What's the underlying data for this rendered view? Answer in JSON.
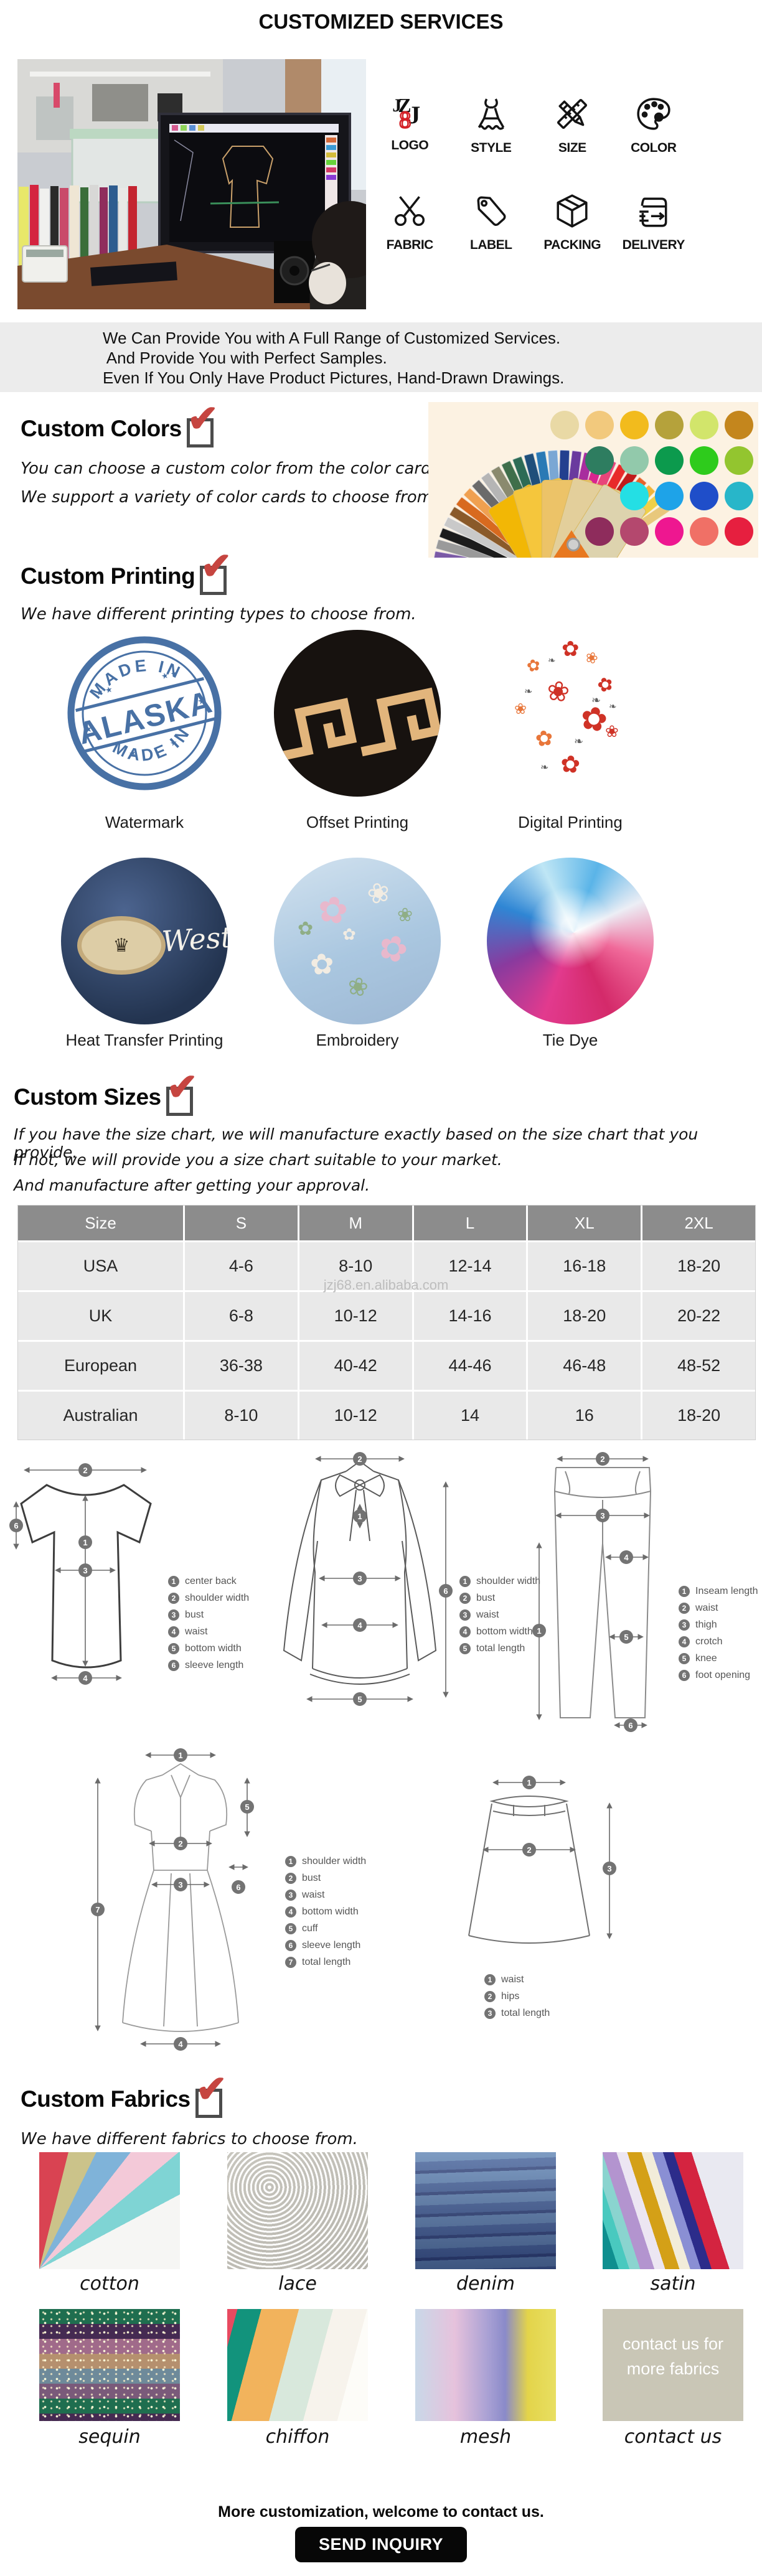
{
  "page": {
    "title": "CUSTOMIZED SERVICES"
  },
  "accent": {
    "check_red": "#c64540",
    "stamp_blue": "#39659e",
    "header_gray": "#8c8c8c",
    "row_gray": "#e9e9e9",
    "bar_gray": "#ececec",
    "gold": "#e2b57c"
  },
  "services": {
    "items": [
      {
        "label": "LOGO",
        "icon": "jzj-logo-icon"
      },
      {
        "label": "STYLE",
        "icon": "dress-icon"
      },
      {
        "label": "SIZE",
        "icon": "ruler-pencil-icon"
      },
      {
        "label": "COLOR",
        "icon": "palette-icon"
      },
      {
        "label": "FABRIC",
        "icon": "scissors-icon"
      },
      {
        "label": "LABEL",
        "icon": "tag-icon"
      },
      {
        "label": "PACKING",
        "icon": "box-icon"
      },
      {
        "label": "DELIVERY",
        "icon": "delivery-icon"
      }
    ],
    "logo": {
      "letters": [
        "J",
        "Z",
        "J",
        "8"
      ]
    }
  },
  "intro": {
    "lines": [
      "We Can Provide You with A Full Range of Customized Services.",
      " And Provide You with Perfect Samples.",
      "Even If You Only Have Product Pictures, Hand-Drawn Drawings."
    ]
  },
  "custom_colors": {
    "heading": "Custom Colors",
    "lines": [
      "You can choose a custom color from the color card.",
      "We support a variety of color cards to choose from."
    ],
    "fan_colors": [
      "#e8e23e",
      "#8bc63e",
      "#2a9e3a",
      "#7b5aa6",
      "#9a9a9a",
      "#1c1c1c",
      "#c9c9c9",
      "#8a5a2a",
      "#d86a1f",
      "#f0a050",
      "#6a6a6a",
      "#b5b5b5",
      "#8a8a6e",
      "#3f6e4a",
      "#2d6b55",
      "#1f4f7a",
      "#2a7ab5",
      "#7aa7d4",
      "#23408f",
      "#6a3a9e",
      "#a82d9e",
      "#d9258f",
      "#e8457a",
      "#e82a2a",
      "#c01a1a",
      "#e8632a",
      "#f0b43a",
      "#f0d048",
      "#e8c87c"
    ],
    "card_colors": [
      "#f2b705",
      "#f5c63c",
      "#ecc368",
      "#e3cf9b",
      "#ddd3ae"
    ],
    "dot_rows": [
      [
        "#e9d9a5",
        "#f2c97d",
        "#f2bb1d",
        "#b5a23b",
        "#d2e56b",
        "#c4861d"
      ],
      [
        "#2e7d60",
        "#92c9ab",
        "#0c9a4d",
        "#2ecb1c",
        "#93c52f"
      ],
      [
        "#24dfe4",
        "#1ea3e8",
        "#1f4ec9",
        "#28b6c9"
      ],
      [
        "#8e2c5c",
        "#b4486e",
        "#ee1790",
        "#f07066",
        "#e61f3f"
      ]
    ]
  },
  "custom_printing": {
    "heading": "Custom Printing",
    "line": "We have different printing types to choose from.",
    "types": [
      {
        "label": "Watermark"
      },
      {
        "label": "Offset Printing"
      },
      {
        "label": "Digital Printing"
      },
      {
        "label": "Heat Transfer Printing"
      },
      {
        "label": "Embroidery"
      },
      {
        "label": "Tie Dye"
      }
    ],
    "stamp": {
      "top": "MADE IN",
      "center": "ALASKA",
      "bottom": "MADE IN"
    },
    "patch_crest": "♛",
    "patch_text": "West",
    "flower_glyphs": [
      "✿",
      "❀",
      "❧"
    ]
  },
  "custom_sizes": {
    "heading": "Custom Sizes",
    "lines": [
      "If you have the size chart, we will manufacture exactly based on the size chart that you provide.",
      "If not, we will provide you a size chart suitable to your market.",
      "And manufacture after getting your approval."
    ],
    "watermark": "jzj68.en.alibaba.com",
    "table": {
      "headers": [
        "Size",
        "S",
        "M",
        "L",
        "XL",
        "2XL"
      ],
      "rows": [
        {
          "cells": [
            "USA",
            "4-6",
            "8-10",
            "12-14",
            "16-18",
            "18-20"
          ]
        },
        {
          "cells": [
            "UK",
            "6-8",
            "10-12",
            "14-16",
            "18-20",
            "20-22"
          ]
        },
        {
          "cells": [
            "European",
            "36-38",
            "40-42",
            "44-46",
            "46-48",
            "48-52"
          ]
        },
        {
          "cells": [
            "Australian",
            "8-10",
            "10-12",
            "14",
            "16",
            "18-20"
          ]
        }
      ]
    }
  },
  "measure": {
    "tshirt": {
      "items": [
        {
          "num": "1",
          "label": "center back"
        },
        {
          "num": "2",
          "label": "shoulder width"
        },
        {
          "num": "3",
          "label": "bust"
        },
        {
          "num": "4",
          "label": "waist"
        },
        {
          "num": "5",
          "label": "bottom width"
        },
        {
          "num": "6",
          "label": "sleeve length"
        }
      ]
    },
    "blouse": {
      "items": [
        {
          "num": "1",
          "label": "shoulder width"
        },
        {
          "num": "2",
          "label": "bust"
        },
        {
          "num": "3",
          "label": "waist"
        },
        {
          "num": "4",
          "label": "bottom width"
        },
        {
          "num": "5",
          "label": "total length"
        }
      ]
    },
    "pants": {
      "items": [
        {
          "num": "1",
          "label": "Inseam length"
        },
        {
          "num": "2",
          "label": "waist"
        },
        {
          "num": "3",
          "label": "thigh"
        },
        {
          "num": "4",
          "label": "crotch"
        },
        {
          "num": "5",
          "label": "knee"
        },
        {
          "num": "6",
          "label": "foot opening"
        }
      ]
    },
    "dress": {
      "items": [
        {
          "num": "1",
          "label": "shoulder width"
        },
        {
          "num": "2",
          "label": "bust"
        },
        {
          "num": "3",
          "label": "waist"
        },
        {
          "num": "4",
          "label": "bottom width"
        },
        {
          "num": "5",
          "label": "cuff"
        },
        {
          "num": "6",
          "label": "sleeve length"
        },
        {
          "num": "7",
          "label": "total length"
        }
      ]
    },
    "skirt": {
      "items": [
        {
          "num": "1",
          "label": "waist"
        },
        {
          "num": "2",
          "label": "hips"
        },
        {
          "num": "3",
          "label": "total length"
        }
      ]
    }
  },
  "custom_fabrics": {
    "heading": "Custom Fabrics",
    "line": "We have different fabrics to choose from.",
    "items": [
      {
        "label": "cotton"
      },
      {
        "label": "lace"
      },
      {
        "label": "denim"
      },
      {
        "label": "satin"
      },
      {
        "label": "sequin"
      },
      {
        "label": "chiffon"
      },
      {
        "label": "mesh"
      },
      {
        "label": "contact us"
      }
    ],
    "contact_card": {
      "line1": "contact us for",
      "line2": "more fabrics"
    }
  },
  "footer": {
    "message": "More customization, welcome to contact us.",
    "button": "SEND INQUIRY"
  }
}
